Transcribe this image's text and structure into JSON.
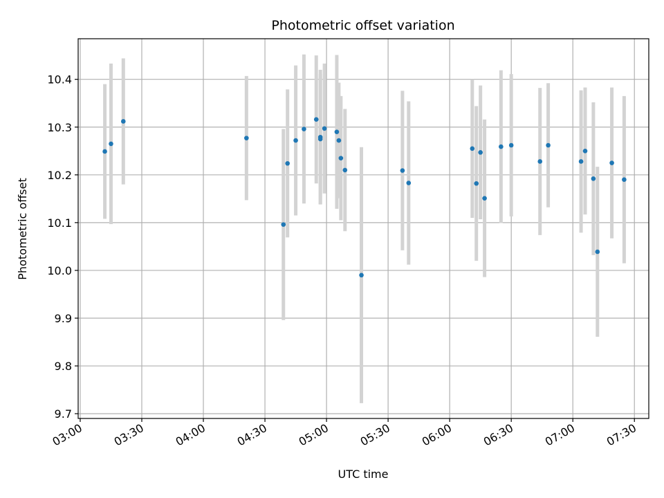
{
  "chart_data": {
    "type": "scatter",
    "title": "Photometric offset variation",
    "xlabel": "UTC time",
    "ylabel": "Photometric offset",
    "grid": true,
    "x_is_time": true,
    "xlim": [
      "02:59",
      "07:37"
    ],
    "ylim": [
      9.69,
      10.485
    ],
    "x_ticks": [
      "03:00",
      "03:30",
      "04:00",
      "04:30",
      "05:00",
      "05:30",
      "06:00",
      "06:30",
      "07:00",
      "07:30"
    ],
    "y_ticks": [
      9.7,
      9.8,
      9.9,
      10.0,
      10.1,
      10.2,
      10.3,
      10.4
    ],
    "y_tick_labels": [
      "9.7",
      "9.8",
      "9.9",
      "10.0",
      "10.1",
      "10.2",
      "10.3",
      "10.4"
    ],
    "errorbar_color": "#d3d3d3",
    "marker_color": "#1f77b4",
    "points": [
      {
        "x": "03:12",
        "y": 10.249,
        "err": 0.141
      },
      {
        "x": "03:15",
        "y": 10.265,
        "err": 0.168
      },
      {
        "x": "03:21",
        "y": 10.312,
        "err": 0.132
      },
      {
        "x": "04:21",
        "y": 10.277,
        "err": 0.13
      },
      {
        "x": "04:39",
        "y": 10.096,
        "err": 0.2
      },
      {
        "x": "04:41",
        "y": 10.224,
        "err": 0.155
      },
      {
        "x": "04:45",
        "y": 10.272,
        "err": 0.157
      },
      {
        "x": "04:49",
        "y": 10.296,
        "err": 0.156
      },
      {
        "x": "04:55",
        "y": 10.316,
        "err": 0.134
      },
      {
        "x": "04:57",
        "y": 10.279,
        "err": 0.141
      },
      {
        "x": "04:57",
        "y": 10.275,
        "err": 0.136
      },
      {
        "x": "04:59",
        "y": 10.297,
        "err": 0.136
      },
      {
        "x": "05:05",
        "y": 10.29,
        "err": 0.161
      },
      {
        "x": "05:06",
        "y": 10.272,
        "err": 0.121
      },
      {
        "x": "05:07",
        "y": 10.235,
        "err": 0.13
      },
      {
        "x": "05:09",
        "y": 10.21,
        "err": 0.128
      },
      {
        "x": "05:17",
        "y": 9.99,
        "err": 0.268
      },
      {
        "x": "05:37",
        "y": 10.209,
        "err": 0.167
      },
      {
        "x": "05:40",
        "y": 10.183,
        "err": 0.171
      },
      {
        "x": "06:11",
        "y": 10.255,
        "err": 0.145
      },
      {
        "x": "06:13",
        "y": 10.182,
        "err": 0.162
      },
      {
        "x": "06:15",
        "y": 10.247,
        "err": 0.14
      },
      {
        "x": "06:17",
        "y": 10.151,
        "err": 0.165
      },
      {
        "x": "06:25",
        "y": 10.259,
        "err": 0.16
      },
      {
        "x": "06:30",
        "y": 10.262,
        "err": 0.149
      },
      {
        "x": "06:44",
        "y": 10.228,
        "err": 0.154
      },
      {
        "x": "06:48",
        "y": 10.262,
        "err": 0.13
      },
      {
        "x": "07:04",
        "y": 10.228,
        "err": 0.149
      },
      {
        "x": "07:06",
        "y": 10.25,
        "err": 0.133
      },
      {
        "x": "07:10",
        "y": 10.192,
        "err": 0.16
      },
      {
        "x": "07:12",
        "y": 10.039,
        "err": 0.178
      },
      {
        "x": "07:19",
        "y": 10.225,
        "err": 0.158
      },
      {
        "x": "07:25",
        "y": 10.19,
        "err": 0.175
      }
    ]
  }
}
